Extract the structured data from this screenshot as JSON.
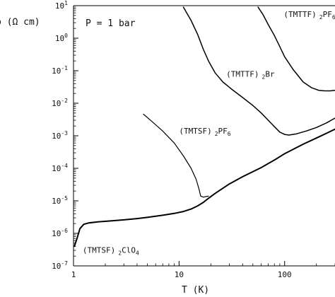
{
  "chart_data": {
    "type": "line",
    "title": "",
    "xlabel": "T (K)",
    "ylabel": "ρ (Ω cm)",
    "xscale": "log",
    "yscale": "log",
    "xlim": [
      1,
      300
    ],
    "ylim": [
      1e-07,
      10
    ],
    "x_ticks": [
      {
        "value": 1,
        "label": "1"
      },
      {
        "value": 10,
        "label": "10"
      },
      {
        "value": 100,
        "label": "100"
      }
    ],
    "y_ticks": [
      {
        "value": 1e-07,
        "base": "10",
        "exp": "-7"
      },
      {
        "value": 1e-06,
        "base": "10",
        "exp": "-6"
      },
      {
        "value": 1e-05,
        "base": "10",
        "exp": "-5"
      },
      {
        "value": 0.0001,
        "base": "10",
        "exp": "-4"
      },
      {
        "value": 0.001,
        "base": "10",
        "exp": "-3"
      },
      {
        "value": 0.01,
        "base": "10",
        "exp": "-2"
      },
      {
        "value": 0.1,
        "base": "10",
        "exp": "-1"
      },
      {
        "value": 1,
        "base": "10",
        "exp": "0"
      },
      {
        "value": 10,
        "base": "10",
        "exp": "1"
      }
    ],
    "annotation": "P = 1 bar",
    "grid": false,
    "legend": "none",
    "series": [
      {
        "label_main": "(TMTSF)",
        "label_parts": [
          "2",
          "ClO",
          "4"
        ],
        "label_at": [
          1.22,
          2.5e-07
        ],
        "stroke_width": 2,
        "points": [
          [
            1.02,
            4e-07
          ],
          [
            1.08,
            7e-07
          ],
          [
            1.15,
            1.4e-06
          ],
          [
            1.25,
            1.9e-06
          ],
          [
            1.4,
            2.1e-06
          ],
          [
            1.7,
            2.25e-06
          ],
          [
            2.2,
            2.4e-06
          ],
          [
            3,
            2.6e-06
          ],
          [
            4,
            2.85e-06
          ],
          [
            5,
            3.1e-06
          ],
          [
            7,
            3.6e-06
          ],
          [
            9,
            4.1e-06
          ],
          [
            11,
            4.7e-06
          ],
          [
            13,
            5.6e-06
          ],
          [
            15,
            7e-06
          ],
          [
            17,
            9e-06
          ],
          [
            19,
            1.2e-05
          ],
          [
            22,
            1.7e-05
          ],
          [
            30,
            3.3e-05
          ],
          [
            40,
            5.5e-05
          ],
          [
            60,
            0.000105
          ],
          [
            80,
            0.00018
          ],
          [
            100,
            0.00028
          ],
          [
            150,
            0.00055
          ],
          [
            200,
            0.00085
          ],
          [
            250,
            0.0012
          ],
          [
            300,
            0.0016
          ]
        ]
      },
      {
        "label_main": "(TMTSF)",
        "label_parts": [
          "2",
          "PF",
          "6"
        ],
        "label_at": [
          10,
          0.00115
        ],
        "stroke_width": 1.2,
        "points": [
          [
            4.6,
            0.0046
          ],
          [
            5.5,
            0.0028
          ],
          [
            7,
            0.0014
          ],
          [
            9,
            0.0006
          ],
          [
            11,
            0.00024
          ],
          [
            13,
            0.0001
          ],
          [
            14.5,
            4.6e-05
          ],
          [
            15.5,
            2.2e-05
          ],
          [
            16,
            1.4e-05
          ],
          [
            17,
            1.3e-05
          ],
          [
            18,
            1.35e-05
          ],
          [
            19,
            1.4e-05
          ]
        ]
      },
      {
        "label_main": "(TMTTF)",
        "label_parts": [
          "2",
          "Br"
        ],
        "label_at": [
          28,
          0.065
        ],
        "stroke_width": 1.5,
        "points": [
          [
            11,
            9
          ],
          [
            13,
            3.5
          ],
          [
            15,
            1.3
          ],
          [
            17,
            0.45
          ],
          [
            19,
            0.2
          ],
          [
            22,
            0.085
          ],
          [
            26,
            0.045
          ],
          [
            32,
            0.026
          ],
          [
            40,
            0.015
          ],
          [
            50,
            0.0085
          ],
          [
            60,
            0.005
          ],
          [
            70,
            0.003
          ],
          [
            80,
            0.0019
          ],
          [
            90,
            0.0013
          ],
          [
            100,
            0.0011
          ],
          [
            110,
            0.00105
          ],
          [
            130,
            0.00115
          ],
          [
            160,
            0.0014
          ],
          [
            200,
            0.0018
          ],
          [
            250,
            0.0025
          ],
          [
            300,
            0.0035
          ]
        ]
      },
      {
        "label_main": "(TMTTF)",
        "label_parts": [
          "2",
          "PF",
          "6"
        ],
        "label_at": [
          98,
          4.5
        ],
        "stroke_width": 1.5,
        "points": [
          [
            56,
            9
          ],
          [
            62,
            5.5
          ],
          [
            70,
            2.6
          ],
          [
            80,
            1.2
          ],
          [
            90,
            0.55
          ],
          [
            100,
            0.27
          ],
          [
            120,
            0.11
          ],
          [
            150,
            0.045
          ],
          [
            180,
            0.03
          ],
          [
            210,
            0.025
          ],
          [
            240,
            0.024
          ],
          [
            270,
            0.024
          ],
          [
            300,
            0.025
          ]
        ]
      }
    ]
  }
}
